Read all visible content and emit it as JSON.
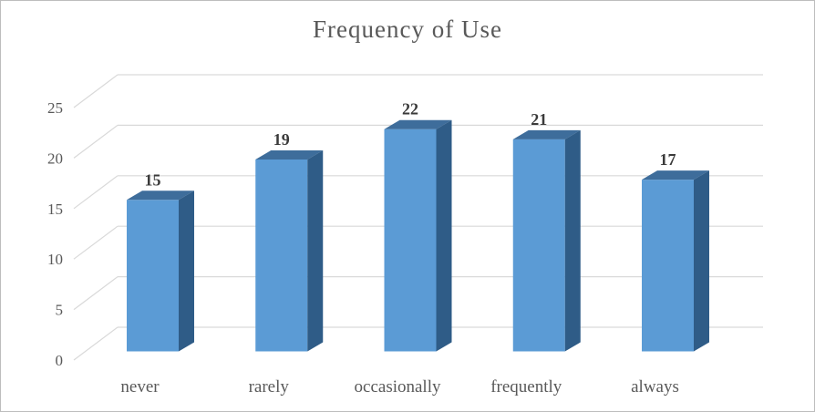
{
  "chart_data": {
    "type": "bar",
    "variant": "3d-column",
    "title": "Frequency of Use",
    "categories": [
      "never",
      "rarely",
      "occasionally",
      "frequently",
      "always"
    ],
    "values": [
      15,
      19,
      22,
      21,
      17
    ],
    "data_labels": [
      "15",
      "19",
      "22",
      "21",
      "17"
    ],
    "y_ticks": [
      0,
      5,
      10,
      15,
      20,
      25
    ],
    "y_tick_labels": [
      "0",
      "5",
      "10",
      "15",
      "20",
      "25"
    ],
    "ylim": [
      0,
      25
    ],
    "xlabel": "",
    "ylabel": "",
    "legend": "none",
    "grid": true,
    "colors": {
      "bar_front": "#5b9bd5",
      "bar_top": "#3e6d9b",
      "bar_side": "#2f5c87",
      "gridline": "#d9d9d9",
      "axis_text": "#595959",
      "category_text": "#595959",
      "value_label_text": "#3a3a3a",
      "title_text": "#595959"
    }
  }
}
